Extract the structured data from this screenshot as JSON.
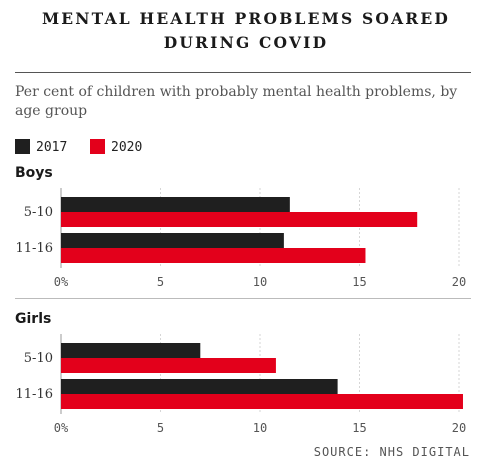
{
  "title_line1": "MENTAL HEALTH PROBLEMS SOARED",
  "title_line2": "DURING COVID",
  "subtitle": "Per cent of children with probably mental health problems, by age group",
  "legend": [
    {
      "label": "2017",
      "color": "#1f1f1f"
    },
    {
      "label": "2020",
      "color": "#e3001b"
    }
  ],
  "source": "SOURCE: NHS DIGITAL",
  "chart_data": [
    {
      "type": "bar",
      "orientation": "horizontal",
      "title": "Boys",
      "categories": [
        "5-10",
        "11-16"
      ],
      "series": [
        {
          "name": "2017",
          "values": [
            11.5,
            11.2
          ]
        },
        {
          "name": "2020",
          "values": [
            17.9,
            15.3
          ]
        }
      ],
      "xlim": [
        0,
        20
      ],
      "xticks": [
        "0%",
        "5",
        "10",
        "15",
        "20"
      ],
      "grid": true
    },
    {
      "type": "bar",
      "orientation": "horizontal",
      "title": "Girls",
      "categories": [
        "5-10",
        "11-16"
      ],
      "series": [
        {
          "name": "2017",
          "values": [
            7.0,
            13.9
          ]
        },
        {
          "name": "2020",
          "values": [
            10.8,
            20.2
          ]
        }
      ],
      "xlim": [
        0,
        20
      ],
      "xticks": [
        "0%",
        "5",
        "10",
        "15",
        "20"
      ],
      "grid": true
    }
  ]
}
